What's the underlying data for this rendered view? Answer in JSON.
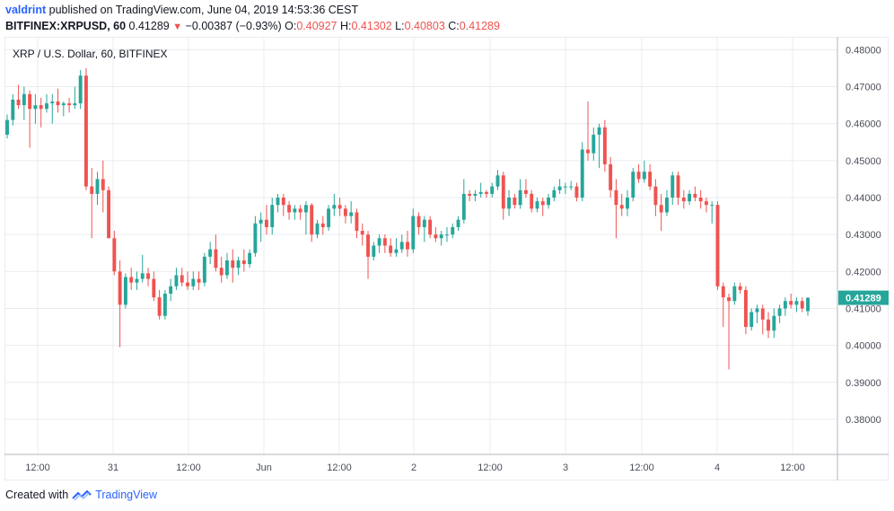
{
  "header": {
    "author": "valdrint",
    "published_text": "published on TradingView.com, June 04, 2019 14:53:36 CEST",
    "symbol": "BITFINEX:XRPUSD, 60",
    "last": "0.41289",
    "change": "−0.00387 (−0.93%)",
    "o_label": "O:",
    "o_value": "0.40927",
    "h_label": "H:",
    "h_value": "0.41302",
    "l_label": "L:",
    "l_value": "0.40803",
    "c_label": "C:",
    "c_value": "0.41289"
  },
  "footer": {
    "created_with": "Created with",
    "brand": "TradingView"
  },
  "colors": {
    "up": "#26a69a",
    "down": "#ef5350",
    "grid": "#e9ecf0",
    "axis_text": "#4a4e59",
    "last_price_bg": "#26a69a"
  },
  "chart_data": {
    "type": "candlestick",
    "title": "XRP / U.S. Dollar, 60, BITFINEX",
    "interval": "60",
    "ylim": [
      0.3705,
      0.4835
    ],
    "y_ticks": [
      "0.48000",
      "0.47000",
      "0.46000",
      "0.45000",
      "0.44000",
      "0.43000",
      "0.42000",
      "0.41000",
      "0.40000",
      "0.39000",
      "0.38000"
    ],
    "x_ticks": [
      "12:00",
      "31",
      "12:00",
      "Jun",
      "12:00",
      "2",
      "12:00",
      "3",
      "12:00",
      "4",
      "12:00"
    ],
    "last_price_label": "0.41289",
    "grid": true,
    "candles": [
      [
        0.457,
        0.4625,
        0.456,
        0.461
      ],
      [
        0.461,
        0.468,
        0.4595,
        0.4665
      ],
      [
        0.4665,
        0.4705,
        0.464,
        0.465
      ],
      [
        0.465,
        0.47,
        0.461,
        0.468
      ],
      [
        0.468,
        0.469,
        0.4535,
        0.464
      ],
      [
        0.464,
        0.468,
        0.46,
        0.465
      ],
      [
        0.465,
        0.467,
        0.459,
        0.464
      ],
      [
        0.464,
        0.468,
        0.463,
        0.4655
      ],
      [
        0.4655,
        0.468,
        0.46,
        0.466
      ],
      [
        0.466,
        0.4695,
        0.463,
        0.465
      ],
      [
        0.465,
        0.466,
        0.462,
        0.4655
      ],
      [
        0.4655,
        0.467,
        0.463,
        0.465
      ],
      [
        0.465,
        0.47,
        0.464,
        0.4655
      ],
      [
        0.4655,
        0.4745,
        0.464,
        0.473
      ],
      [
        0.473,
        0.475,
        0.442,
        0.443
      ],
      [
        0.443,
        0.448,
        0.429,
        0.441
      ],
      [
        0.441,
        0.447,
        0.438,
        0.445
      ],
      [
        0.445,
        0.45,
        0.436,
        0.442
      ],
      [
        0.442,
        0.443,
        0.43,
        0.429
      ],
      [
        0.429,
        0.431,
        0.419,
        0.42
      ],
      [
        0.42,
        0.423,
        0.3995,
        0.411
      ],
      [
        0.411,
        0.4195,
        0.41,
        0.4185
      ],
      [
        0.4185,
        0.421,
        0.415,
        0.417
      ],
      [
        0.417,
        0.42,
        0.415,
        0.418
      ],
      [
        0.418,
        0.4245,
        0.417,
        0.4195
      ],
      [
        0.4195,
        0.421,
        0.416,
        0.418
      ],
      [
        0.418,
        0.42,
        0.412,
        0.413
      ],
      [
        0.413,
        0.415,
        0.407,
        0.408
      ],
      [
        0.408,
        0.415,
        0.407,
        0.414
      ],
      [
        0.414,
        0.418,
        0.412,
        0.416
      ],
      [
        0.416,
        0.421,
        0.415,
        0.419
      ],
      [
        0.419,
        0.421,
        0.416,
        0.417
      ],
      [
        0.417,
        0.42,
        0.415,
        0.416
      ],
      [
        0.416,
        0.42,
        0.415,
        0.418
      ],
      [
        0.418,
        0.42,
        0.415,
        0.417
      ],
      [
        0.417,
        0.425,
        0.416,
        0.424
      ],
      [
        0.424,
        0.428,
        0.422,
        0.426
      ],
      [
        0.426,
        0.43,
        0.42,
        0.421
      ],
      [
        0.421,
        0.424,
        0.417,
        0.419
      ],
      [
        0.419,
        0.425,
        0.418,
        0.423
      ],
      [
        0.423,
        0.426,
        0.417,
        0.421
      ],
      [
        0.421,
        0.424,
        0.419,
        0.423
      ],
      [
        0.423,
        0.426,
        0.42,
        0.422
      ],
      [
        0.422,
        0.426,
        0.421,
        0.425
      ],
      [
        0.425,
        0.435,
        0.424,
        0.433
      ],
      [
        0.433,
        0.436,
        0.428,
        0.434
      ],
      [
        0.434,
        0.438,
        0.43,
        0.432
      ],
      [
        0.432,
        0.44,
        0.43,
        0.438
      ],
      [
        0.438,
        0.441,
        0.436,
        0.44
      ],
      [
        0.44,
        0.441,
        0.435,
        0.438
      ],
      [
        0.438,
        0.439,
        0.434,
        0.436
      ],
      [
        0.436,
        0.438,
        0.434,
        0.437
      ],
      [
        0.437,
        0.438,
        0.434,
        0.436
      ],
      [
        0.436,
        0.439,
        0.43,
        0.438
      ],
      [
        0.438,
        0.4385,
        0.428,
        0.43
      ],
      [
        0.43,
        0.434,
        0.429,
        0.433
      ],
      [
        0.433,
        0.435,
        0.43,
        0.432
      ],
      [
        0.432,
        0.438,
        0.431,
        0.437
      ],
      [
        0.437,
        0.441,
        0.435,
        0.438
      ],
      [
        0.438,
        0.44,
        0.435,
        0.437
      ],
      [
        0.437,
        0.438,
        0.433,
        0.435
      ],
      [
        0.435,
        0.439,
        0.433,
        0.436
      ],
      [
        0.436,
        0.437,
        0.429,
        0.431
      ],
      [
        0.431,
        0.433,
        0.427,
        0.43
      ],
      [
        0.43,
        0.431,
        0.418,
        0.424
      ],
      [
        0.424,
        0.428,
        0.423,
        0.427
      ],
      [
        0.427,
        0.43,
        0.425,
        0.429
      ],
      [
        0.429,
        0.43,
        0.425,
        0.427
      ],
      [
        0.427,
        0.429,
        0.424,
        0.425
      ],
      [
        0.425,
        0.429,
        0.424,
        0.426
      ],
      [
        0.426,
        0.43,
        0.425,
        0.428
      ],
      [
        0.428,
        0.431,
        0.424,
        0.426
      ],
      [
        0.426,
        0.437,
        0.425,
        0.435
      ],
      [
        0.435,
        0.436,
        0.43,
        0.432
      ],
      [
        0.432,
        0.435,
        0.428,
        0.434
      ],
      [
        0.434,
        0.435,
        0.429,
        0.43
      ],
      [
        0.43,
        0.432,
        0.428,
        0.429
      ],
      [
        0.429,
        0.431,
        0.427,
        0.43
      ],
      [
        0.43,
        0.432,
        0.428,
        0.43
      ],
      [
        0.43,
        0.433,
        0.429,
        0.432
      ],
      [
        0.432,
        0.435,
        0.431,
        0.434
      ],
      [
        0.434,
        0.445,
        0.433,
        0.441
      ],
      [
        0.441,
        0.442,
        0.439,
        0.4405
      ],
      [
        0.4405,
        0.442,
        0.439,
        0.441
      ],
      [
        0.441,
        0.444,
        0.44,
        0.4415
      ],
      [
        0.4415,
        0.442,
        0.44,
        0.441
      ],
      [
        0.441,
        0.444,
        0.44,
        0.443
      ],
      [
        0.443,
        0.4475,
        0.442,
        0.446
      ],
      [
        0.446,
        0.447,
        0.434,
        0.437
      ],
      [
        0.437,
        0.442,
        0.435,
        0.44
      ],
      [
        0.44,
        0.441,
        0.437,
        0.438
      ],
      [
        0.438,
        0.445,
        0.437,
        0.442
      ],
      [
        0.442,
        0.445,
        0.44,
        0.441
      ],
      [
        0.441,
        0.442,
        0.436,
        0.437
      ],
      [
        0.437,
        0.44,
        0.436,
        0.439
      ],
      [
        0.439,
        0.44,
        0.435,
        0.438
      ],
      [
        0.438,
        0.441,
        0.437,
        0.44
      ],
      [
        0.44,
        0.443,
        0.439,
        0.442
      ],
      [
        0.442,
        0.445,
        0.441,
        0.443
      ],
      [
        0.443,
        0.444,
        0.441,
        0.443
      ],
      [
        0.443,
        0.4445,
        0.442,
        0.443
      ],
      [
        0.443,
        0.444,
        0.439,
        0.44
      ],
      [
        0.44,
        0.455,
        0.439,
        0.453
      ],
      [
        0.453,
        0.466,
        0.45,
        0.452
      ],
      [
        0.452,
        0.459,
        0.45,
        0.457
      ],
      [
        0.457,
        0.46,
        0.448,
        0.459
      ],
      [
        0.459,
        0.461,
        0.447,
        0.449
      ],
      [
        0.449,
        0.451,
        0.44,
        0.442
      ],
      [
        0.442,
        0.445,
        0.429,
        0.438
      ],
      [
        0.438,
        0.441,
        0.435,
        0.437
      ],
      [
        0.437,
        0.442,
        0.435,
        0.44
      ],
      [
        0.44,
        0.448,
        0.439,
        0.447
      ],
      [
        0.447,
        0.449,
        0.444,
        0.445
      ],
      [
        0.445,
        0.45,
        0.444,
        0.447
      ],
      [
        0.447,
        0.449,
        0.442,
        0.443
      ],
      [
        0.443,
        0.445,
        0.435,
        0.438
      ],
      [
        0.438,
        0.441,
        0.431,
        0.436
      ],
      [
        0.436,
        0.442,
        0.435,
        0.44
      ],
      [
        0.44,
        0.447,
        0.438,
        0.446
      ],
      [
        0.446,
        0.447,
        0.438,
        0.44
      ],
      [
        0.44,
        0.442,
        0.437,
        0.439
      ],
      [
        0.439,
        0.442,
        0.438,
        0.441
      ],
      [
        0.441,
        0.443,
        0.439,
        0.44
      ],
      [
        0.44,
        0.442,
        0.437,
        0.439
      ],
      [
        0.439,
        0.44,
        0.436,
        0.438
      ],
      [
        0.438,
        0.439,
        0.433,
        0.438
      ],
      [
        0.438,
        0.439,
        0.415,
        0.416
      ],
      [
        0.416,
        0.417,
        0.405,
        0.413
      ],
      [
        0.413,
        0.414,
        0.3935,
        0.412
      ],
      [
        0.412,
        0.417,
        0.411,
        0.416
      ],
      [
        0.416,
        0.417,
        0.414,
        0.415
      ],
      [
        0.415,
        0.416,
        0.403,
        0.405
      ],
      [
        0.405,
        0.41,
        0.404,
        0.409
      ],
      [
        0.409,
        0.411,
        0.406,
        0.41
      ],
      [
        0.41,
        0.411,
        0.403,
        0.407
      ],
      [
        0.407,
        0.409,
        0.402,
        0.404
      ],
      [
        0.404,
        0.41,
        0.402,
        0.408
      ],
      [
        0.408,
        0.411,
        0.406,
        0.41
      ],
      [
        0.41,
        0.413,
        0.408,
        0.412
      ],
      [
        0.412,
        0.414,
        0.41,
        0.411
      ],
      [
        0.411,
        0.413,
        0.409,
        0.412
      ],
      [
        0.412,
        0.413,
        0.409,
        0.41
      ],
      [
        0.40927,
        0.41302,
        0.40803,
        0.41289
      ]
    ]
  }
}
